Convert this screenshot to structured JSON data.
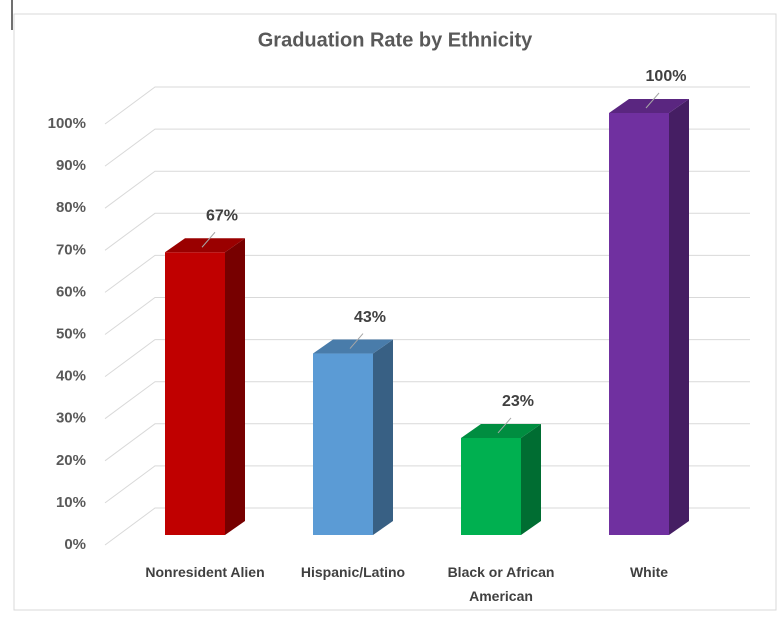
{
  "chart_data": {
    "type": "bar3d",
    "title": "Graduation Rate by Ethnicity",
    "categories": [
      "Nonresident Alien",
      "Hispanic/Latino",
      "Black or African American",
      "White"
    ],
    "values": [
      67,
      43,
      23,
      100
    ],
    "value_labels": [
      "67%",
      "43%",
      "23%",
      "100%"
    ],
    "colors": [
      "#c00000",
      "#5b9bd5",
      "#00b050",
      "#7030a0"
    ],
    "ylim": [
      0,
      100
    ],
    "yticks": [
      {
        "value": 0,
        "label": "0%"
      },
      {
        "value": 10,
        "label": "10%"
      },
      {
        "value": 20,
        "label": "20%"
      },
      {
        "value": 30,
        "label": "30%"
      },
      {
        "value": 40,
        "label": "40%"
      },
      {
        "value": 50,
        "label": "50%"
      },
      {
        "value": 60,
        "label": "60%"
      },
      {
        "value": 70,
        "label": "70%"
      },
      {
        "value": 80,
        "label": "80%"
      },
      {
        "value": 90,
        "label": "90%"
      },
      {
        "value": 100,
        "label": "100%"
      }
    ],
    "grid": true
  }
}
